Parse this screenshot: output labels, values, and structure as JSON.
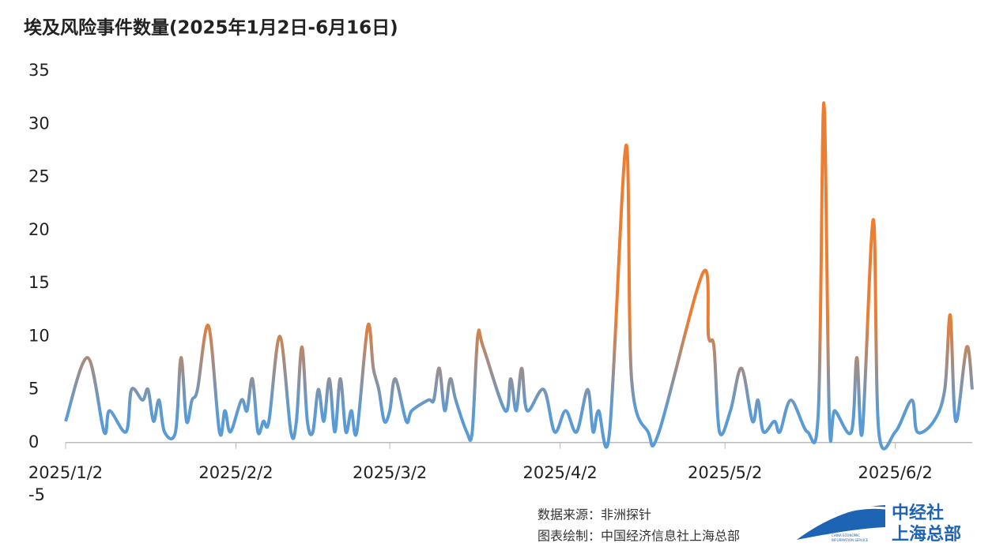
{
  "chart_data": {
    "type": "line",
    "title": "埃及风险事件数量(2025年1月2日-6月16日)",
    "x": [
      "2025/1/2",
      "2025/1/6",
      "2025/1/9",
      "2025/1/10",
      "2025/1/13",
      "2025/1/14",
      "2025/1/16",
      "2025/1/17",
      "2025/1/18",
      "2025/1/19",
      "2025/1/20",
      "2025/1/22",
      "2025/1/23",
      "2025/1/24",
      "2025/1/25",
      "2025/1/26",
      "2025/1/28",
      "2025/1/30",
      "2025/1/31",
      "2025/2/1",
      "2025/2/3",
      "2025/2/4",
      "2025/2/5",
      "2025/2/6",
      "2025/2/7",
      "2025/2/8",
      "2025/2/10",
      "2025/2/12",
      "2025/2/13",
      "2025/2/14",
      "2025/2/15",
      "2025/2/16",
      "2025/2/17",
      "2025/2/18",
      "2025/2/19",
      "2025/2/20",
      "2025/2/21",
      "2025/2/22",
      "2025/2/23",
      "2025/2/24",
      "2025/2/26",
      "2025/2/27",
      "2025/2/28",
      "2025/3/1",
      "2025/3/2",
      "2025/3/3",
      "2025/3/5",
      "2025/3/6",
      "2025/3/9",
      "2025/3/10",
      "2025/3/11",
      "2025/3/12",
      "2025/3/13",
      "2025/3/14",
      "2025/3/16",
      "2025/3/17",
      "2025/3/18",
      "2025/3/19",
      "2025/3/23",
      "2025/3/24",
      "2025/3/25",
      "2025/3/26",
      "2025/3/27",
      "2025/3/30",
      "2025/4/1",
      "2025/4/3",
      "2025/4/5",
      "2025/4/7",
      "2025/4/8",
      "2025/4/9",
      "2025/4/11",
      "2025/4/14",
      "2025/4/15",
      "2025/4/18",
      "2025/4/20",
      "2025/4/28",
      "2025/4/29",
      "2025/4/30",
      "2025/5/1",
      "2025/5/3",
      "2025/5/5",
      "2025/5/7",
      "2025/5/8",
      "2025/5/9",
      "2025/5/11",
      "2025/5/12",
      "2025/5/14",
      "2025/5/17",
      "2025/5/19",
      "2025/5/20",
      "2025/5/21",
      "2025/5/22",
      "2025/5/25",
      "2025/5/26",
      "2025/5/27",
      "2025/5/29",
      "2025/5/30",
      "2025/6/2",
      "2025/6/5",
      "2025/6/6",
      "2025/6/9",
      "2025/6/11",
      "2025/6/12",
      "2025/6/13",
      "2025/6/15",
      "2025/6/16"
    ],
    "values": [
      2,
      8,
      1,
      3,
      1,
      5,
      4,
      5,
      2,
      4,
      1,
      1,
      8,
      2,
      4,
      5,
      11,
      1,
      3,
      1,
      4,
      3,
      6,
      1,
      2,
      2,
      10,
      1,
      2,
      9,
      2,
      1,
      5,
      2,
      6,
      1,
      6,
      1,
      3,
      1,
      11,
      7,
      5,
      2,
      3,
      6,
      2,
      3,
      4,
      4,
      7,
      3,
      6,
      4,
      1,
      1,
      10,
      9,
      3,
      6,
      3,
      7,
      3,
      5,
      1,
      3,
      1,
      5,
      1,
      3,
      1,
      28,
      6,
      1,
      1,
      16,
      10,
      9,
      1,
      3,
      7,
      2,
      4,
      1,
      2,
      1,
      4,
      1,
      3,
      32,
      2,
      3,
      1,
      8,
      1,
      21,
      1,
      1,
      4,
      1,
      2,
      5,
      12,
      2,
      9,
      5
    ],
    "colors": [
      "#5b9bd5",
      "#ed7d31"
    ],
    "xlim": [
      "2025/1/2",
      "2025/6/16"
    ],
    "xticks": [
      "2025/1/2",
      "2025/2/2",
      "2025/3/2",
      "2025/4/2",
      "2025/5/2",
      "2025/6/2"
    ],
    "ylim": [
      -5,
      35
    ],
    "yticks": [
      -5,
      0,
      5,
      10,
      15,
      20,
      25,
      30,
      35
    ],
    "grid": false
  },
  "footer": {
    "source": "数据来源：非洲探针",
    "author": "图表绘制：中国经济信息社上海总部",
    "logo_top": "中经社",
    "logo_bottom": "上海总部",
    "logo_en_1": "CHINA ECONOMIC",
    "logo_en_2": "INFORMATION SERVICE"
  }
}
